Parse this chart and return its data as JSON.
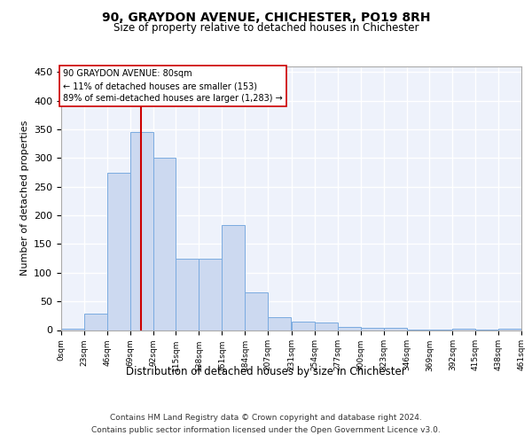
{
  "title": "90, GRAYDON AVENUE, CHICHESTER, PO19 8RH",
  "subtitle": "Size of property relative to detached houses in Chichester",
  "xlabel": "Distribution of detached houses by size in Chichester",
  "ylabel": "Number of detached properties",
  "bar_color": "#ccd9f0",
  "bar_edge_color": "#7aabe0",
  "background_color": "#eef2fb",
  "grid_color": "#ffffff",
  "vline_color": "#cc0000",
  "vline_x": 80,
  "annotation_text_line1": "90 GRAYDON AVENUE: 80sqm",
  "annotation_text_line2": "← 11% of detached houses are smaller (153)",
  "annotation_text_line3": "89% of semi-detached houses are larger (1,283) →",
  "footer_line1": "Contains HM Land Registry data © Crown copyright and database right 2024.",
  "footer_line2": "Contains public sector information licensed under the Open Government Licence v3.0.",
  "bin_edges": [
    0,
    23,
    46,
    69,
    92,
    115,
    138,
    161,
    184,
    207,
    231,
    254,
    277,
    300,
    323,
    346,
    369,
    392,
    415,
    438,
    461
  ],
  "bin_heights": [
    3,
    28,
    275,
    345,
    300,
    125,
    125,
    183,
    65,
    22,
    14,
    13,
    6,
    4,
    4,
    1,
    1,
    3,
    1,
    2
  ],
  "ylim": [
    0,
    460
  ],
  "yticks": [
    0,
    50,
    100,
    150,
    200,
    250,
    300,
    350,
    400,
    450
  ],
  "tick_labels": [
    "0sqm",
    "23sqm",
    "46sqm",
    "69sqm",
    "92sqm",
    "115sqm",
    "138sqm",
    "161sqm",
    "184sqm",
    "207sqm",
    "231sqm",
    "254sqm",
    "277sqm",
    "300sqm",
    "323sqm",
    "346sqm",
    "369sqm",
    "392sqm",
    "415sqm",
    "438sqm",
    "461sqm"
  ]
}
